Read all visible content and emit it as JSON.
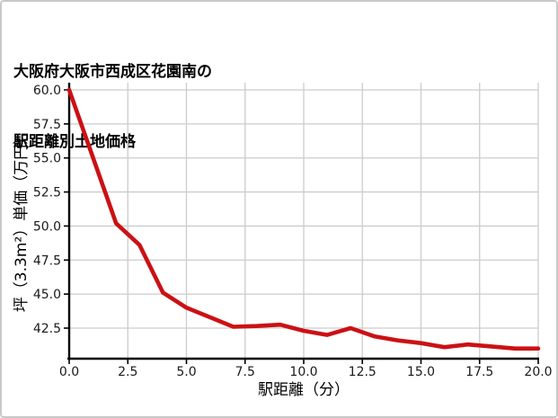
{
  "title": {
    "line1": "大阪府大阪市西成区花園南の",
    "line2": "駅距離別土地価格"
  },
  "chart_data": {
    "type": "line",
    "title": "大阪府大阪市西成区花園南の駅距離別土地価格",
    "xlabel": "駅距離（分）",
    "ylabel": "坪（3.3m²）単価（万円）",
    "x": [
      0,
      1,
      2,
      3,
      4,
      5,
      6,
      7,
      8,
      9,
      10,
      11,
      12,
      13,
      14,
      15,
      16,
      17,
      18,
      19,
      20
    ],
    "values": [
      60.0,
      55.1,
      50.2,
      48.6,
      45.1,
      44.0,
      43.3,
      42.6,
      42.65,
      42.75,
      42.3,
      42.0,
      42.5,
      41.9,
      41.6,
      41.4,
      41.1,
      41.3,
      41.15,
      41.0,
      41.0
    ],
    "xlim": [
      0,
      20
    ],
    "ylim": [
      40.2,
      60.5
    ],
    "x_tick_values": [
      0,
      2.5,
      5,
      7.5,
      10,
      12.5,
      15,
      17.5,
      20
    ],
    "x_tick_labels": [
      "0.0",
      "2.5",
      "5.0",
      "7.5",
      "10.0",
      "12.5",
      "15.0",
      "17.5",
      "20.0"
    ],
    "y_tick_values": [
      42.5,
      45.0,
      47.5,
      50.0,
      52.5,
      55.0,
      57.5,
      60.0
    ],
    "y_tick_labels": [
      "42.5",
      "45.0",
      "47.5",
      "50.0",
      "52.5",
      "55.0",
      "57.5",
      "60.0"
    ],
    "grid": true,
    "legend": "none",
    "line_color": "#cb1114",
    "grid_color": "#cccccc",
    "axis_color": "#000000",
    "tick_label_color": "#1a1a1a"
  }
}
